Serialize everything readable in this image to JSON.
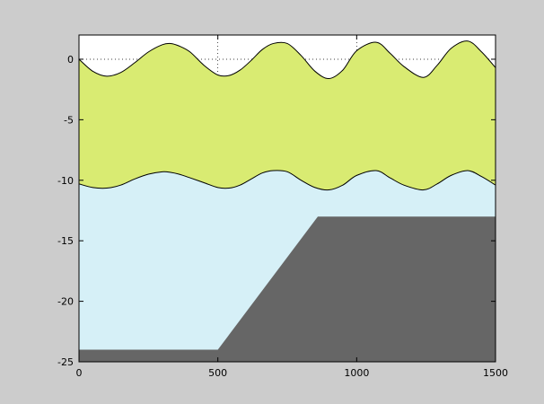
{
  "chart_data": {
    "type": "area",
    "xlim": [
      0,
      1500
    ],
    "ylim": [
      -25,
      2
    ],
    "x_ticks": [
      "0",
      "500",
      "1000",
      "1500"
    ],
    "y_ticks": [
      "0",
      "-5",
      "-10",
      "-15",
      "-20",
      "-25"
    ],
    "x_tick_values": [
      0,
      500,
      1000,
      1500
    ],
    "y_tick_values": [
      0,
      -5,
      -10,
      -15,
      -20,
      -25
    ],
    "grid": "dotted",
    "surface_wave": {
      "x": [
        0,
        50,
        100,
        150,
        200,
        250,
        300,
        330,
        360,
        400,
        450,
        500,
        540,
        580,
        620,
        660,
        700,
        750,
        800,
        850,
        900,
        950,
        1000,
        1070,
        1120,
        1170,
        1240,
        1290,
        1340,
        1400,
        1450,
        1500
      ],
      "y": [
        0,
        -1.0,
        -1.4,
        -1.1,
        -0.3,
        0.6,
        1.2,
        1.3,
        1.1,
        0.6,
        -0.5,
        -1.3,
        -1.35,
        -0.9,
        -0.1,
        0.8,
        1.3,
        1.3,
        0.3,
        -1.0,
        -1.6,
        -0.9,
        0.7,
        1.4,
        0.5,
        -0.6,
        -1.5,
        -0.5,
        0.9,
        1.5,
        0.6,
        -0.7
      ]
    },
    "interface_wave": {
      "x": [
        0,
        50,
        100,
        150,
        200,
        250,
        300,
        330,
        360,
        400,
        450,
        500,
        540,
        580,
        620,
        660,
        700,
        750,
        800,
        850,
        900,
        950,
        1000,
        1070,
        1120,
        1170,
        1240,
        1290,
        1340,
        1400,
        1450,
        1500
      ],
      "y": [
        -10.3,
        -10.6,
        -10.65,
        -10.4,
        -9.9,
        -9.5,
        -9.3,
        -9.35,
        -9.5,
        -9.8,
        -10.2,
        -10.6,
        -10.65,
        -10.4,
        -9.9,
        -9.4,
        -9.2,
        -9.3,
        -10.0,
        -10.6,
        -10.8,
        -10.4,
        -9.6,
        -9.2,
        -9.8,
        -10.4,
        -10.8,
        -10.3,
        -9.6,
        -9.2,
        -9.7,
        -10.4
      ]
    },
    "bottom": {
      "x": [
        0,
        500,
        860,
        1500
      ],
      "y": [
        -24,
        -24,
        -13,
        -13
      ]
    },
    "colors": {
      "upper_layer": "#d9eb72",
      "lower_layer": "#d6f0f7",
      "bottom": "#666666",
      "sky": "#ffffff",
      "frame": "#000000",
      "figure_bg": "#cccccc"
    }
  }
}
